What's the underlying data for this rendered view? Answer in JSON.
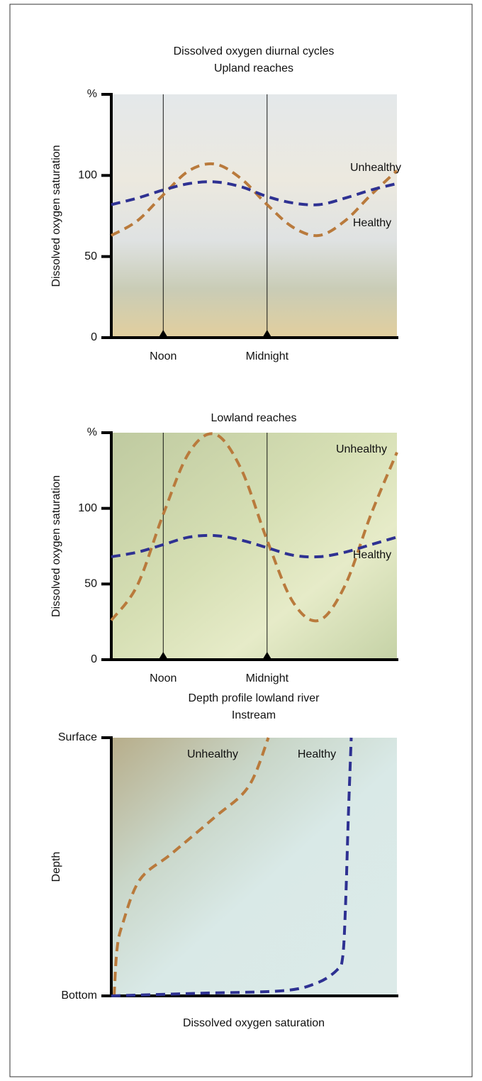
{
  "chart_data": [
    {
      "type": "line",
      "title": "Dissolved oxygen diurnal cycles",
      "subtitle": "Upland reaches",
      "y_label": "Dissolved oxygen saturation",
      "x": [
        6,
        9,
        12,
        15,
        18,
        21,
        24,
        27,
        30,
        33,
        36,
        39
      ],
      "xlim": [
        6,
        39
      ],
      "xticks": [
        {
          "value": 12,
          "label": "Noon"
        },
        {
          "value": 24,
          "label": "Midnight"
        }
      ],
      "ylim": [
        0,
        150
      ],
      "yticks": [
        0,
        50,
        100,
        {
          "value": 150,
          "label": "%"
        }
      ],
      "series": [
        {
          "name": "Unhealthy",
          "color": "#b97a3c",
          "values": [
            63,
            72,
            88,
            103,
            107,
            98,
            82,
            68,
            63,
            72,
            88,
            103
          ]
        },
        {
          "name": "Healthy",
          "color": "#2e3192",
          "values": [
            82,
            86,
            91,
            95,
            96,
            93,
            87,
            83,
            82,
            86,
            91,
            95
          ]
        }
      ]
    },
    {
      "type": "line",
      "title": "Lowland reaches",
      "y_label": "Dissolved oxygen saturation",
      "x": [
        6,
        9,
        12,
        15,
        18,
        21,
        24,
        27,
        30,
        33,
        36,
        39
      ],
      "xlim": [
        6,
        39
      ],
      "xticks": [
        {
          "value": 12,
          "label": "Noon"
        },
        {
          "value": 24,
          "label": "Midnight"
        }
      ],
      "ylim": [
        0,
        150
      ],
      "yticks": [
        0,
        50,
        100,
        {
          "value": 150,
          "label": "%"
        }
      ],
      "series": [
        {
          "name": "Unhealthy",
          "color": "#b97a3c",
          "values": [
            26,
            49,
            96,
            137,
            149,
            126,
            79,
            38,
            26,
            49,
            96,
            137
          ]
        },
        {
          "name": "Healthy",
          "color": "#2e3192",
          "values": [
            68,
            71,
            76,
            81,
            82,
            79,
            74,
            69,
            68,
            71,
            76,
            81
          ]
        }
      ]
    },
    {
      "type": "line",
      "title": "Depth profile lowland river",
      "subtitle": "Instream",
      "y_label": "Depth",
      "x_label": "Dissolved oxygen saturation",
      "xlim": [
        0,
        100
      ],
      "ylim": [
        0,
        100
      ],
      "yticks": [
        {
          "value": 0,
          "label": "Bottom"
        },
        {
          "value": 100,
          "label": "Surface"
        }
      ],
      "series": [
        {
          "name": "Unhealthy",
          "color": "#b97a3c",
          "x": [
            1,
            2,
            4,
            10,
            21,
            36,
            48,
            55
          ],
          "values": [
            0,
            18,
            28,
            45,
            55,
            69,
            81,
            100
          ]
        },
        {
          "name": "Healthy",
          "color": "#2e3192",
          "x": [
            0,
            30,
            60,
            72,
            79,
            81,
            82,
            83,
            84
          ],
          "values": [
            0,
            1,
            2,
            5,
            10,
            15,
            35,
            70,
            100
          ]
        }
      ]
    }
  ]
}
